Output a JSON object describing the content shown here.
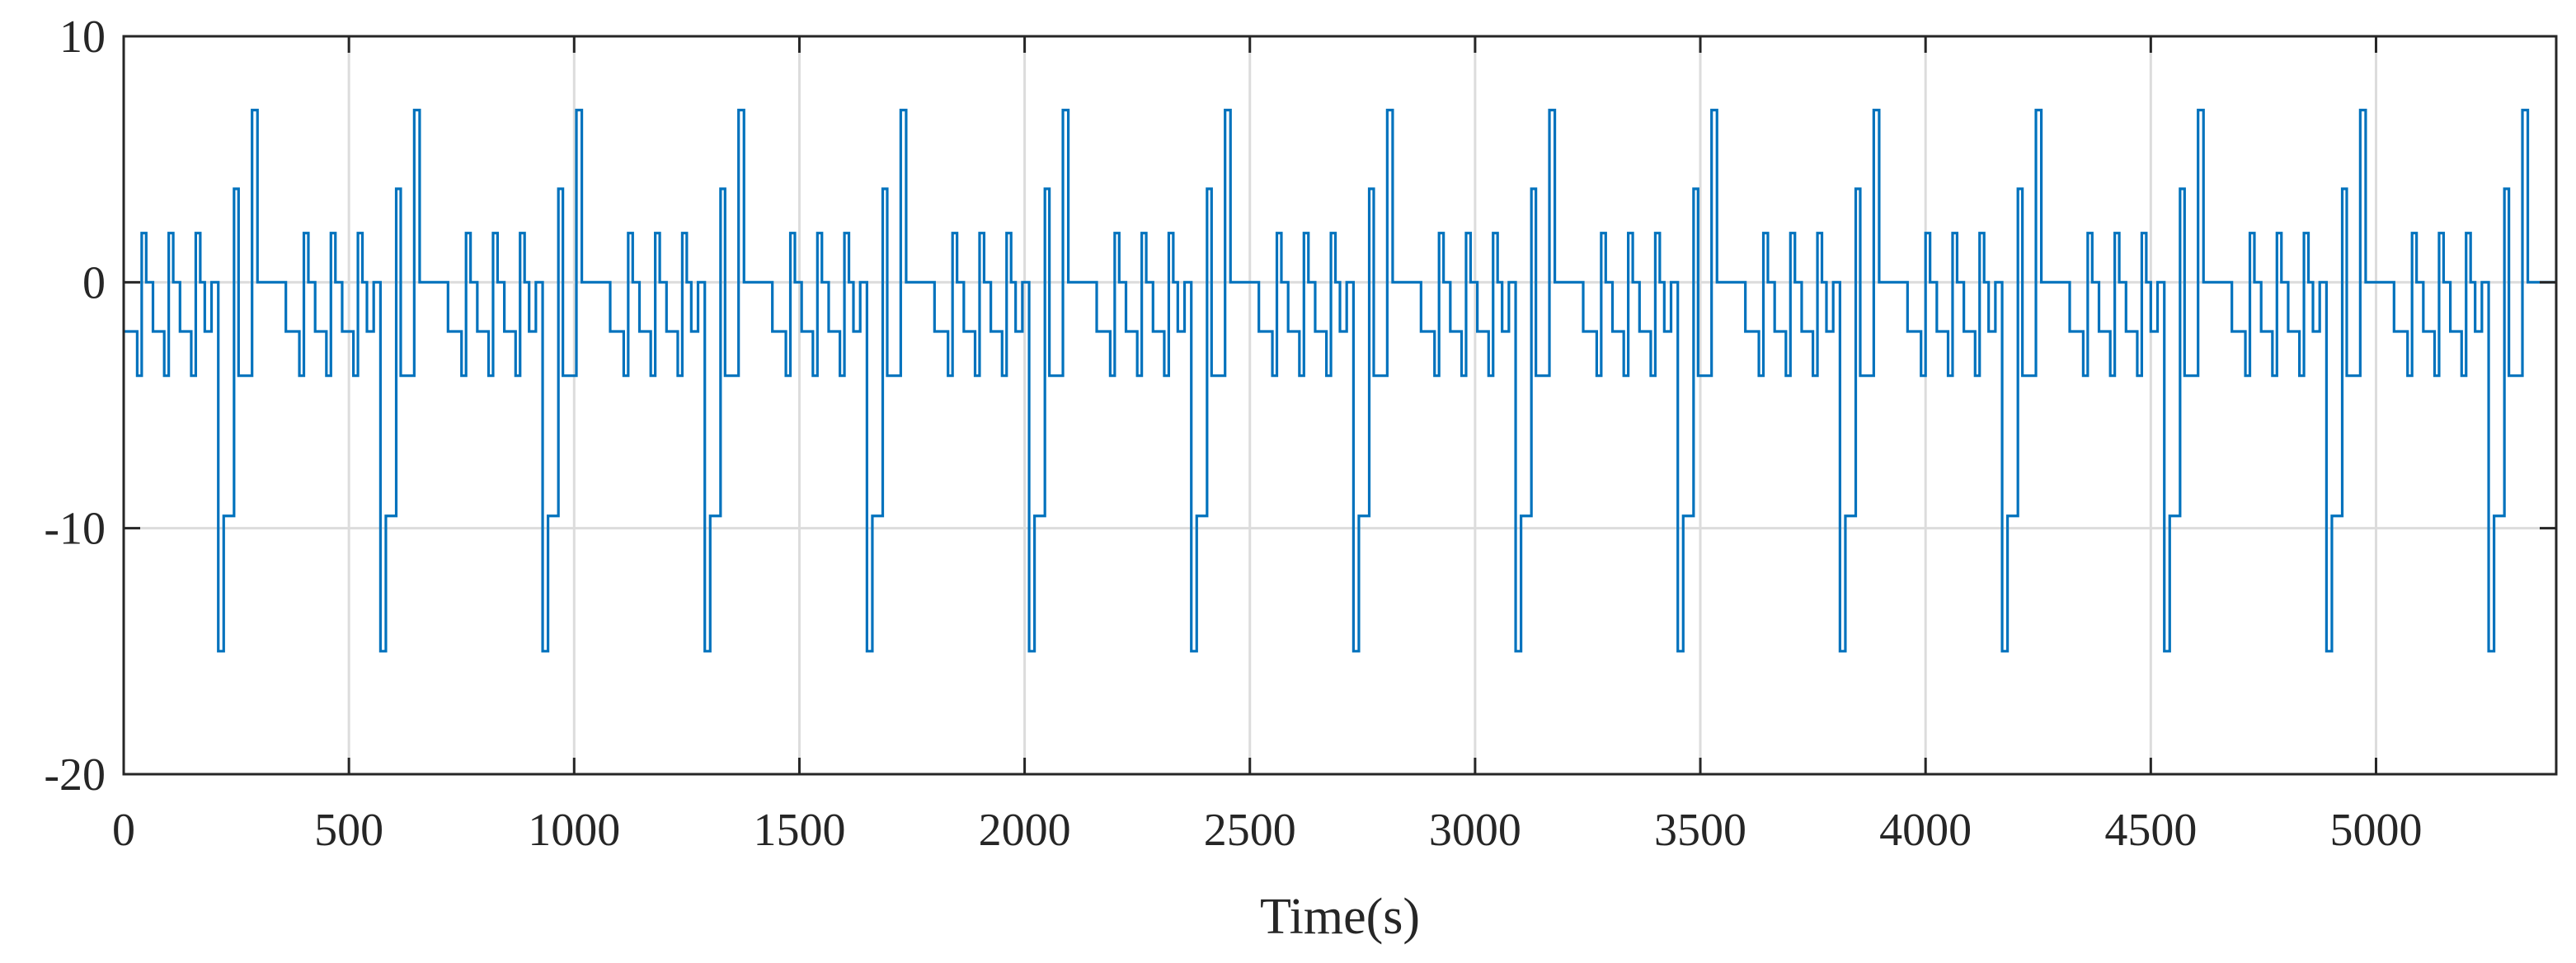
{
  "chart_data": {
    "type": "line",
    "title": "",
    "xlabel": "Time(s)",
    "ylabel": "",
    "xlim": [
      0,
      5400
    ],
    "ylim": [
      -20,
      10
    ],
    "x_ticks": [
      0,
      500,
      1000,
      1500,
      2000,
      2500,
      3000,
      3500,
      4000,
      4500,
      5000
    ],
    "x_tick_labels": [
      "0",
      "500",
      "1000",
      "1500",
      "2000",
      "2500",
      "3000",
      "3500",
      "4000",
      "4500",
      "5000"
    ],
    "y_ticks": [
      -20,
      -10,
      0,
      10
    ],
    "y_tick_labels": [
      "-20",
      "-10",
      "0",
      "10"
    ],
    "grid": true,
    "line_style": "step",
    "line_color": "#0072BD",
    "series": [
      {
        "period": 360,
        "cycles": 15,
        "cycle_pattern": [
          {
            "x": 0,
            "y": -2
          },
          {
            "x": 30,
            "y": -3.8
          },
          {
            "x": 40,
            "y": 2
          },
          {
            "x": 50,
            "y": 0
          },
          {
            "x": 65,
            "y": -2
          },
          {
            "x": 90,
            "y": -3.8
          },
          {
            "x": 100,
            "y": 2
          },
          {
            "x": 110,
            "y": 0
          },
          {
            "x": 125,
            "y": -2
          },
          {
            "x": 150,
            "y": -3.8
          },
          {
            "x": 160,
            "y": 2
          },
          {
            "x": 170,
            "y": 0
          },
          {
            "x": 180,
            "y": -2
          },
          {
            "x": 195,
            "y": 0
          },
          {
            "x": 210,
            "y": -15
          },
          {
            "x": 222,
            "y": -9.5
          },
          {
            "x": 245,
            "y": 3.8
          },
          {
            "x": 255,
            "y": -3.8
          },
          {
            "x": 285,
            "y": 7
          },
          {
            "x": 297,
            "y": 0
          }
        ]
      }
    ]
  }
}
